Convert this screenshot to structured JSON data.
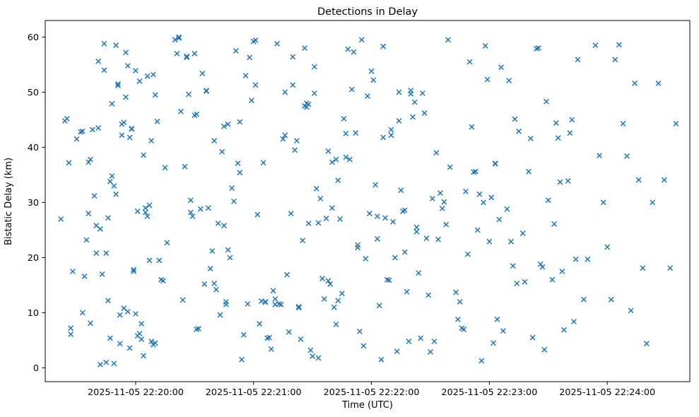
{
  "figure": {
    "background": "#ffffff"
  },
  "chart_data": {
    "type": "scatter",
    "title": "Detections in Delay",
    "xlabel": "Time (UTC)",
    "ylabel": "Bistatic Delay (km)",
    "marker": "x",
    "color": "#1f77b4",
    "x_encoding": "seconds after 2025-11-05 22:19:00 UTC (read from x tick labels)",
    "xlim": [
      14,
      342
    ],
    "ylim": [
      -2.5,
      63
    ],
    "grid": false,
    "legend": "none",
    "xticks": [
      {
        "value": 60,
        "label": "2025-11-05 22:20:00"
      },
      {
        "value": 120,
        "label": "2025-11-05 22:21:00"
      },
      {
        "value": 180,
        "label": "2025-11-05 22:22:00"
      },
      {
        "value": 240,
        "label": "2025-11-05 22:23:00"
      },
      {
        "value": 300,
        "label": "2025-11-05 22:24:00"
      }
    ],
    "yticks": [
      0,
      10,
      20,
      30,
      40,
      50,
      60
    ],
    "points": [
      [
        22,
        27
      ],
      [
        24,
        44.8
      ],
      [
        25,
        45.2
      ],
      [
        26,
        37.2
      ],
      [
        27,
        7.2
      ],
      [
        27,
        6.1
      ],
      [
        28,
        17.5
      ],
      [
        30,
        41.5
      ],
      [
        32,
        42.8
      ],
      [
        33,
        42.9
      ],
      [
        33,
        10
      ],
      [
        34,
        16.6
      ],
      [
        35,
        23.2
      ],
      [
        36,
        28
      ],
      [
        36,
        37.3
      ],
      [
        37,
        37.8
      ],
      [
        37,
        8.1
      ],
      [
        38,
        43.2
      ],
      [
        39,
        31.2
      ],
      [
        40,
        25.8
      ],
      [
        40,
        20.8
      ],
      [
        41,
        55.6
      ],
      [
        41,
        43.5
      ],
      [
        42,
        25.2
      ],
      [
        42,
        0.6
      ],
      [
        43,
        17
      ],
      [
        44,
        58.8
      ],
      [
        44,
        54
      ],
      [
        45,
        20.8
      ],
      [
        45,
        1
      ],
      [
        46,
        27.2
      ],
      [
        46,
        12.2
      ],
      [
        47,
        5.4
      ],
      [
        47,
        33.8
      ],
      [
        48,
        47.9
      ],
      [
        48,
        34.8
      ],
      [
        49,
        33
      ],
      [
        49,
        0.8
      ],
      [
        50,
        58.5
      ],
      [
        50,
        31.5
      ],
      [
        51,
        51.5
      ],
      [
        51,
        51.2
      ],
      [
        52,
        9.6
      ],
      [
        52,
        4.4
      ],
      [
        53,
        42.2
      ],
      [
        53,
        44.2
      ],
      [
        54,
        44.5
      ],
      [
        54,
        10.8
      ],
      [
        55,
        57.2
      ],
      [
        55,
        49.1
      ],
      [
        56,
        54.8
      ],
      [
        56,
        10.2
      ],
      [
        57,
        41.8
      ],
      [
        57,
        3.6
      ],
      [
        58,
        43.3
      ],
      [
        58,
        43.4
      ],
      [
        59,
        17.5
      ],
      [
        59,
        17.8
      ],
      [
        60,
        53.9
      ],
      [
        60,
        9.8
      ],
      [
        61,
        28.4
      ],
      [
        61,
        5.8
      ],
      [
        62,
        52
      ],
      [
        62,
        6.2
      ],
      [
        63,
        8
      ],
      [
        63,
        5.2
      ],
      [
        64,
        38.6
      ],
      [
        64,
        2.2
      ],
      [
        65,
        29
      ],
      [
        65,
        28.2
      ],
      [
        66,
        52.9
      ],
      [
        66,
        27.5
      ],
      [
        67,
        29.5
      ],
      [
        67,
        19.5
      ],
      [
        68,
        41.2
      ],
      [
        68,
        4.8
      ],
      [
        69,
        53.2
      ],
      [
        69,
        4.2
      ],
      [
        70,
        49.5
      ],
      [
        70,
        4.5
      ],
      [
        71,
        44.7
      ],
      [
        72,
        19.5
      ],
      [
        73,
        16
      ],
      [
        74,
        15.8
      ],
      [
        75,
        36.3
      ],
      [
        76,
        22.7
      ],
      [
        80,
        59.5
      ],
      [
        81,
        57
      ],
      [
        82,
        60
      ],
      [
        82,
        59.8
      ],
      [
        83,
        46.5
      ],
      [
        84,
        12.3
      ],
      [
        85,
        36.5
      ],
      [
        86,
        56.5
      ],
      [
        86,
        56.3
      ],
      [
        87,
        49.6
      ],
      [
        88,
        30.4
      ],
      [
        88,
        28.2
      ],
      [
        89,
        27.5
      ],
      [
        90,
        57
      ],
      [
        90,
        45.8
      ],
      [
        91,
        46
      ],
      [
        91,
        7
      ],
      [
        92,
        7.1
      ],
      [
        93,
        28.8
      ],
      [
        94,
        53.4
      ],
      [
        95,
        15.2
      ],
      [
        96,
        50.2
      ],
      [
        96,
        50.3
      ],
      [
        97,
        29
      ],
      [
        98,
        18
      ],
      [
        99,
        21.2
      ],
      [
        100,
        41.2
      ],
      [
        100,
        15.3
      ],
      [
        101,
        14.2
      ],
      [
        102,
        26.2
      ],
      [
        103,
        9.6
      ],
      [
        104,
        39.2
      ],
      [
        105,
        43.8
      ],
      [
        105,
        25.8
      ],
      [
        106,
        12
      ],
      [
        106,
        11.5
      ],
      [
        107,
        44.2
      ],
      [
        107,
        21.4
      ],
      [
        108,
        20
      ],
      [
        109,
        32.6
      ],
      [
        110,
        30.2
      ],
      [
        111,
        57.5
      ],
      [
        112,
        37.1
      ],
      [
        113,
        35.4
      ],
      [
        113,
        44.6
      ],
      [
        114,
        1.5
      ],
      [
        115,
        6
      ],
      [
        116,
        53
      ],
      [
        117,
        11.6
      ],
      [
        118,
        56.3
      ],
      [
        119,
        48.5
      ],
      [
        120,
        59.2
      ],
      [
        121,
        59.4
      ],
      [
        121,
        51.3
      ],
      [
        122,
        27.8
      ],
      [
        123,
        8
      ],
      [
        124,
        12.1
      ],
      [
        125,
        37.2
      ],
      [
        126,
        11.9
      ],
      [
        126,
        12
      ],
      [
        127,
        5.4
      ],
      [
        128,
        5.5
      ],
      [
        129,
        3.4
      ],
      [
        130,
        14
      ],
      [
        131,
        12.5
      ],
      [
        131,
        11.5
      ],
      [
        132,
        58.8
      ],
      [
        133,
        11.6
      ],
      [
        134,
        11.5
      ],
      [
        135,
        41.5
      ],
      [
        136,
        42.2
      ],
      [
        136,
        50
      ],
      [
        137,
        16.9
      ],
      [
        138,
        6.5
      ],
      [
        139,
        28
      ],
      [
        140,
        56.4
      ],
      [
        140,
        51.3
      ],
      [
        141,
        39.5
      ],
      [
        142,
        41.2
      ],
      [
        143,
        11.1
      ],
      [
        143,
        10.9
      ],
      [
        144,
        5.2
      ],
      [
        145,
        23.1
      ],
      [
        146,
        58
      ],
      [
        146,
        47.5
      ],
      [
        147,
        47.3
      ],
      [
        147,
        48
      ],
      [
        148,
        47.8
      ],
      [
        148,
        26.2
      ],
      [
        149,
        3.2
      ],
      [
        150,
        2.1
      ],
      [
        151,
        54.6
      ],
      [
        151,
        49.8
      ],
      [
        152,
        32.5
      ],
      [
        153,
        26.3
      ],
      [
        153,
        1.8
      ],
      [
        154,
        30.7
      ],
      [
        155,
        16.2
      ],
      [
        156,
        12.5
      ],
      [
        157,
        27.1
      ],
      [
        158,
        39.3
      ],
      [
        158,
        15.8
      ],
      [
        159,
        15.2
      ],
      [
        160,
        37.3
      ],
      [
        160,
        29
      ],
      [
        161,
        11
      ],
      [
        162,
        37.8
      ],
      [
        162,
        7.9
      ],
      [
        163,
        34
      ],
      [
        163,
        12.2
      ],
      [
        164,
        27
      ],
      [
        165,
        13.5
      ],
      [
        166,
        45.2
      ],
      [
        167,
        42.5
      ],
      [
        167,
        38.2
      ],
      [
        168,
        57.8
      ],
      [
        169,
        37.8
      ],
      [
        170,
        50.5
      ],
      [
        171,
        57.3
      ],
      [
        172,
        42.6
      ],
      [
        173,
        22.3
      ],
      [
        173,
        21.8
      ],
      [
        174,
        6.6
      ],
      [
        175,
        59.5
      ],
      [
        176,
        4
      ],
      [
        177,
        19.8
      ],
      [
        178,
        49.3
      ],
      [
        179,
        28
      ],
      [
        180,
        53.8
      ],
      [
        181,
        52.2
      ],
      [
        182,
        33.2
      ],
      [
        183,
        27.5
      ],
      [
        183,
        23.4
      ],
      [
        184,
        11.3
      ],
      [
        185,
        1.5
      ],
      [
        186,
        58.3
      ],
      [
        186,
        41.8
      ],
      [
        187,
        27.2
      ],
      [
        188,
        16
      ],
      [
        189,
        15.9
      ],
      [
        190,
        42.2
      ],
      [
        190,
        43.2
      ],
      [
        191,
        26.5
      ],
      [
        192,
        20
      ],
      [
        193,
        3
      ],
      [
        194,
        50
      ],
      [
        194,
        44.8
      ],
      [
        195,
        32.2
      ],
      [
        196,
        28.4
      ],
      [
        197,
        28.6
      ],
      [
        197,
        21
      ],
      [
        198,
        13.8
      ],
      [
        199,
        4.8
      ],
      [
        200,
        50.3
      ],
      [
        200,
        49.7
      ],
      [
        201,
        45.5
      ],
      [
        202,
        48.2
      ],
      [
        203,
        25.5
      ],
      [
        203,
        24.7
      ],
      [
        204,
        17.2
      ],
      [
        205,
        5.4
      ],
      [
        206,
        49.8
      ],
      [
        207,
        46.2
      ],
      [
        208,
        23.5
      ],
      [
        209,
        13.2
      ],
      [
        210,
        2.9
      ],
      [
        211,
        30.7
      ],
      [
        212,
        4.8
      ],
      [
        213,
        39
      ],
      [
        214,
        23.3
      ],
      [
        215,
        31.7
      ],
      [
        216,
        28.9
      ],
      [
        217,
        30.1
      ],
      [
        218,
        26
      ],
      [
        219,
        59.5
      ],
      [
        220,
        36.4
      ],
      [
        223,
        13.7
      ],
      [
        224,
        8.8
      ],
      [
        225,
        12
      ],
      [
        226,
        7.2
      ],
      [
        227,
        7
      ],
      [
        228,
        32
      ],
      [
        229,
        20.6
      ],
      [
        230,
        55.5
      ],
      [
        231,
        43.7
      ],
      [
        232,
        35.5
      ],
      [
        233,
        35.6
      ],
      [
        234,
        25
      ],
      [
        235,
        31.5
      ],
      [
        236,
        1.3
      ],
      [
        237,
        30
      ],
      [
        238,
        58.4
      ],
      [
        239,
        52.3
      ],
      [
        240,
        22.9
      ],
      [
        241,
        30.9
      ],
      [
        242,
        4.5
      ],
      [
        243,
        37
      ],
      [
        243,
        37.1
      ],
      [
        244,
        8.8
      ],
      [
        245,
        26.9
      ],
      [
        246,
        54.5
      ],
      [
        247,
        6.7
      ],
      [
        249,
        28.8
      ],
      [
        250,
        52.1
      ],
      [
        251,
        22.9
      ],
      [
        252,
        18.5
      ],
      [
        253,
        45.1
      ],
      [
        254,
        15.3
      ],
      [
        255,
        42.9
      ],
      [
        257,
        24.4
      ],
      [
        258,
        15.6
      ],
      [
        260,
        35.6
      ],
      [
        261,
        41.6
      ],
      [
        262,
        5.5
      ],
      [
        264,
        57.9
      ],
      [
        265,
        58
      ],
      [
        266,
        18.8
      ],
      [
        267,
        18.3
      ],
      [
        268,
        3.3
      ],
      [
        269,
        48.3
      ],
      [
        270,
        30.4
      ],
      [
        272,
        16
      ],
      [
        273,
        26.1
      ],
      [
        274,
        44.4
      ],
      [
        275,
        41.7
      ],
      [
        276,
        33.7
      ],
      [
        277,
        17.5
      ],
      [
        278,
        6.9
      ],
      [
        280,
        33.9
      ],
      [
        281,
        42.6
      ],
      [
        282,
        45
      ],
      [
        283,
        8.4
      ],
      [
        284,
        19.7
      ],
      [
        285,
        55.9
      ],
      [
        288,
        12.4
      ],
      [
        290,
        19.7
      ],
      [
        294,
        58.5
      ],
      [
        296,
        38.5
      ],
      [
        298,
        30
      ],
      [
        300,
        21.9
      ],
      [
        302,
        12.4
      ],
      [
        304,
        55.9
      ],
      [
        306,
        58.6
      ],
      [
        308,
        44.3
      ],
      [
        310,
        38.4
      ],
      [
        312,
        10.4
      ],
      [
        314,
        51.6
      ],
      [
        316,
        34.1
      ],
      [
        318,
        18.1
      ],
      [
        320,
        4.4
      ],
      [
        323,
        30
      ],
      [
        326,
        51.6
      ],
      [
        329,
        34.1
      ],
      [
        332,
        18.1
      ],
      [
        335,
        44.3
      ]
    ]
  }
}
